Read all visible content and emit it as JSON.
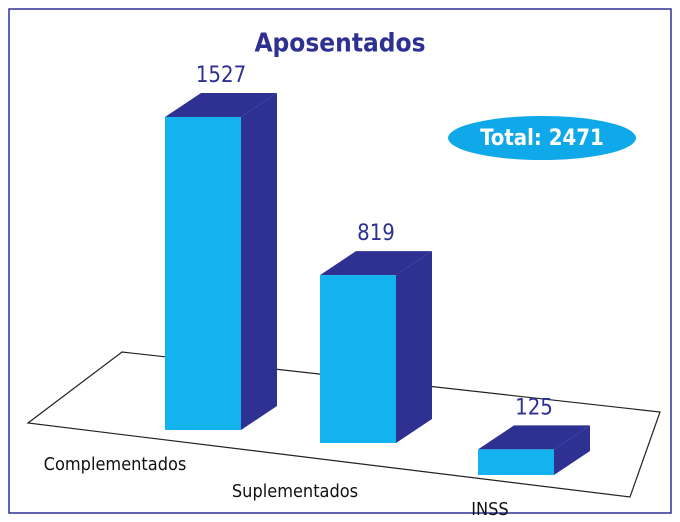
{
  "chart_data": {
    "type": "bar3d",
    "title": "Aposentados",
    "categories": [
      "Complementados",
      "Suplementados",
      "INSS"
    ],
    "values": [
      1527,
      819,
      125
    ],
    "annotation": "Total: 2471",
    "color": "#12b3ee",
    "side_color": "#2e3192"
  }
}
